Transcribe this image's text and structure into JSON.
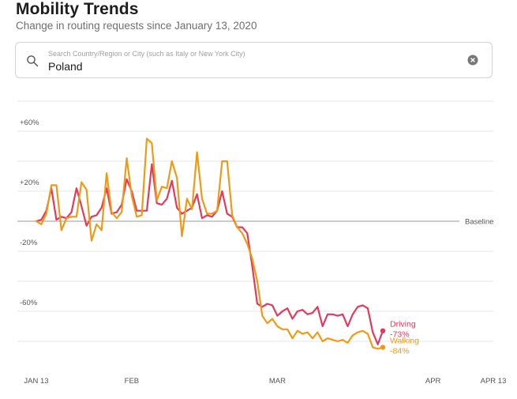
{
  "header": {
    "title": "Mobility Trends",
    "subtitle": "Change in routing requests since January 13, 2020"
  },
  "search": {
    "placeholder": "Search Country/Region or City (such as Italy or New York City)",
    "value": "Poland"
  },
  "chart_data": {
    "type": "line",
    "title": "Mobility Trends",
    "subtitle": "Change in routing requests since January 13, 2020",
    "region": "Poland",
    "ylim": [
      -100,
      80
    ],
    "y_ticks": [
      {
        "value": 60,
        "label": "+60%"
      },
      {
        "value": 20,
        "label": "+20%"
      },
      {
        "value": 0,
        "label": "Baseline"
      },
      {
        "value": -20,
        "label": "-20%"
      },
      {
        "value": -60,
        "label": "-60%"
      }
    ],
    "gridlines": [
      -80,
      -60,
      -40,
      -20,
      0,
      20,
      40,
      60,
      80
    ],
    "x_ticks": [
      {
        "day": 0,
        "label": "JAN 13"
      },
      {
        "day": 19,
        "label": "FEB"
      },
      {
        "day": 48,
        "label": "MAR"
      },
      {
        "day": 79,
        "label": "APR"
      },
      {
        "day": 91,
        "label": "APR 13"
      }
    ],
    "colors": {
      "driving": "#e4385d",
      "walking": "#ef9a14",
      "grid": "#e5e5e5",
      "baseline": "#9a9a9a"
    },
    "series": [
      {
        "name": "Driving",
        "final_label": "-73%",
        "values": [
          0,
          1,
          7,
          22,
          1,
          3,
          2,
          6,
          22,
          10,
          -3,
          3,
          4,
          9,
          22,
          5,
          6,
          11,
          28,
          20,
          7,
          7,
          7,
          38,
          12,
          11,
          15,
          27,
          9,
          5,
          7,
          9,
          18,
          2,
          4,
          3,
          7,
          20,
          5,
          3,
          -4,
          -4,
          -8,
          -30,
          -55,
          -57,
          -55,
          -56,
          -63,
          -60,
          -58,
          -65,
          -60,
          -59,
          -62,
          -61,
          -57,
          -70,
          -62,
          -62,
          -63,
          -62,
          -70,
          -62,
          -57,
          -56,
          -58,
          -74,
          -82,
          -73
        ]
      },
      {
        "name": "Walking",
        "final_label": "-84%",
        "values": [
          0,
          -2,
          5,
          24,
          24,
          -6,
          2,
          3,
          3,
          26,
          21,
          -13,
          -2,
          -6,
          32,
          6,
          2,
          6,
          42,
          17,
          3,
          4,
          55,
          52,
          14,
          23,
          22,
          40,
          29,
          -10,
          15,
          8,
          46,
          15,
          5,
          5,
          7,
          40,
          40,
          4,
          -4,
          -8,
          -15,
          -25,
          -40,
          -63,
          -68,
          -65,
          -70,
          -72,
          -72,
          -78,
          -73,
          -75,
          -74,
          -78,
          -74,
          -80,
          -78,
          -79,
          -80,
          -79,
          -81,
          -76,
          -74,
          -73,
          -75,
          -84,
          -85,
          -84
        ]
      }
    ],
    "x_days": [
      0,
      1,
      2,
      3,
      4,
      5,
      6,
      7,
      8,
      9,
      10,
      11,
      12,
      13,
      14,
      15,
      16,
      17,
      18,
      19,
      20,
      21,
      22,
      23,
      24,
      25,
      26,
      27,
      28,
      29,
      30,
      31,
      32,
      33,
      34,
      35,
      36,
      37,
      38,
      39,
      40,
      41,
      42,
      43,
      44,
      45,
      46,
      47,
      48,
      49,
      50,
      51,
      52,
      53,
      54,
      55,
      56,
      57,
      58,
      59,
      60,
      61,
      62,
      63,
      64,
      65,
      66,
      67,
      68,
      69
    ]
  }
}
